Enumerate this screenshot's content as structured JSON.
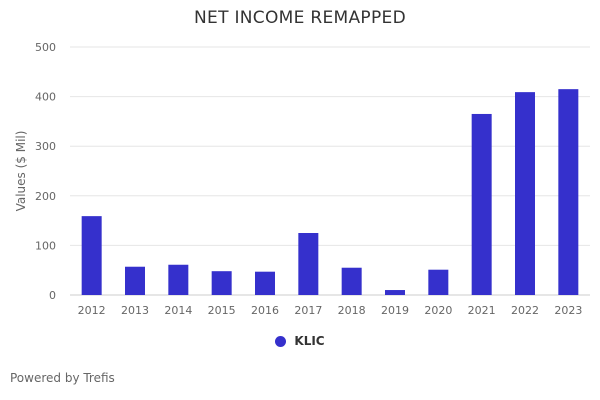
{
  "footer": "Powered by Trefis",
  "chart_data": {
    "type": "bar",
    "title": "NET INCOME REMAPPED",
    "xlabel": "",
    "ylabel": "Values ($ Mil)",
    "ylim": [
      0,
      500
    ],
    "yticks": [
      0,
      100,
      200,
      300,
      400,
      500
    ],
    "grid": true,
    "legend_position": "bottom",
    "categories": [
      "2012",
      "2013",
      "2014",
      "2015",
      "2016",
      "2017",
      "2018",
      "2019",
      "2020",
      "2021",
      "2022",
      "2023"
    ],
    "series": [
      {
        "name": "KLIC",
        "color": "#3530cc",
        "values": [
          159,
          57,
          61,
          48,
          47,
          125,
          55,
          10,
          51,
          365,
          409,
          415
        ]
      }
    ]
  }
}
